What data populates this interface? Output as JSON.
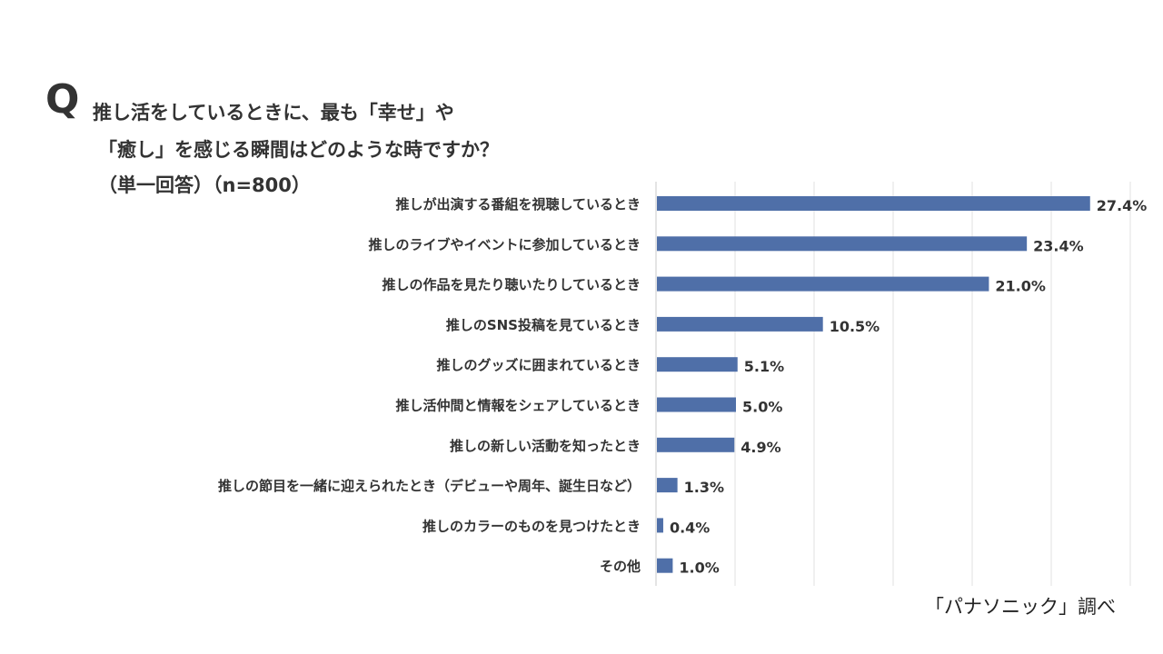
{
  "header": {
    "q_mark": "Q",
    "title_line1": "推し活をしているときに、最も「幸せ」や",
    "title_line2": "「癒し」を感じる瞬間はどのような時ですか？",
    "title_line3": "（単一回答）（n=800）"
  },
  "source": "「パナソニック」調べ",
  "chart_data": {
    "type": "bar",
    "orientation": "horizontal",
    "categories": [
      "推しが出演する番組を視聴しているとき",
      "推しのライブやイベントに参加しているとき",
      "推しの作品を見たり聴いたりしているとき",
      "推しのSNS投稿を見ているとき",
      "推しのグッズに囲まれているとき",
      "推し活仲間と情報をシェアしているとき",
      "推しの新しい活動を知ったとき",
      "推しの節目を一緒に迎えられたとき（デビューや周年、誕生日など）",
      "推しのカラーのものを見つけたとき",
      "その他"
    ],
    "values": [
      27.4,
      23.4,
      21.0,
      10.5,
      5.1,
      5.0,
      4.9,
      1.3,
      0.4,
      1.0
    ],
    "data_labels": [
      "27.4%",
      "23.4%",
      "21.0%",
      "10.5%",
      "5.1%",
      "5.0%",
      "4.9%",
      "1.3%",
      "0.4%",
      "1.0%"
    ],
    "xlim": [
      0,
      30
    ],
    "grid_step": 5,
    "grid": true,
    "bar_color": "#4f6fa8",
    "grid_color": "#e0e0e0"
  }
}
